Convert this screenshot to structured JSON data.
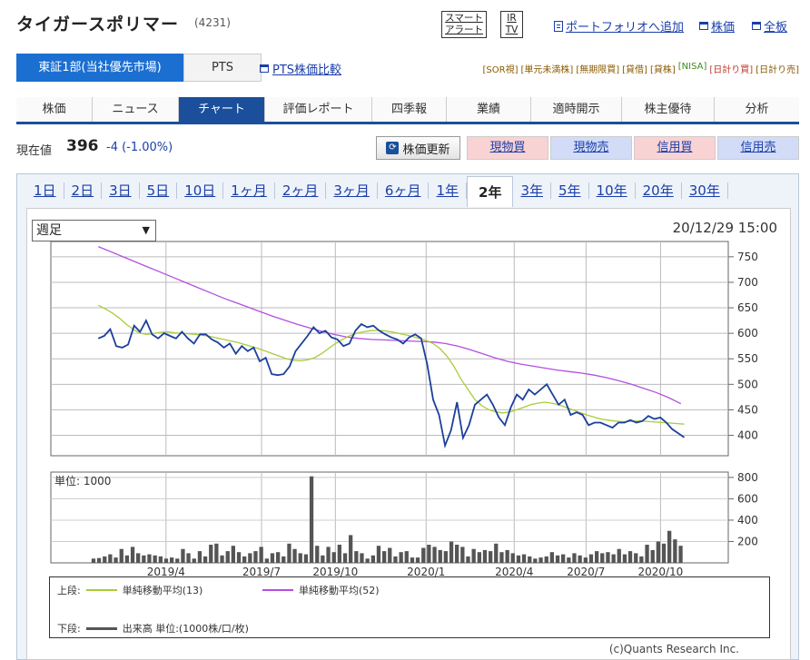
{
  "header": {
    "company": "タイガースポリマー",
    "code": "(4231)",
    "badge_alert_1": "スマート",
    "badge_alert_2": "アラート",
    "badge_ir_1": "IR",
    "badge_ir_2": "TV",
    "link_portfolio": "ポートフォリオへ追加",
    "link_price": "株価",
    "link_board": "全板"
  },
  "market": {
    "active_tab": "東証1部(当社優先市場)",
    "pts_tab": "PTS",
    "pts_compare": "PTS株価比較",
    "tags": [
      "[SOR視]",
      "[単元未満株]",
      "[無期限買]",
      "[貸借]",
      "[貸株]",
      "[NISA]",
      "[日計り買]",
      "[日計り売]"
    ]
  },
  "nav": {
    "items": [
      "株価",
      "ニュース",
      "チャート",
      "評価レポート",
      "四季報",
      "業績",
      "適時開示",
      "株主優待",
      "分析"
    ],
    "active_index": 2
  },
  "quote": {
    "label": "現在値",
    "price": "396",
    "change": "-4 (-1.00%)",
    "refresh": "株価更新",
    "buy_spot": "現物買",
    "sell_spot": "現物売",
    "buy_margin": "信用買",
    "sell_margin": "信用売"
  },
  "periods": {
    "items": [
      "1日",
      "2日",
      "3日",
      "5日",
      "10日",
      "1ヶ月",
      "2ヶ月",
      "3ヶ月",
      "6ヶ月",
      "1年",
      "2年",
      "3年",
      "5年",
      "10年",
      "20年",
      "30年"
    ],
    "active_index": 10
  },
  "chart_controls": {
    "select_value": "週足",
    "timestamp": "20/12/29 15:00",
    "volume_unit_label": "単位: 1000",
    "copyright": "(c)Quants Research Inc."
  },
  "legend": {
    "upper_label": "上段:",
    "ma13": "単純移動平均(13)",
    "ma52": "単純移動平均(52)",
    "lower_label": "下段:",
    "volume": "出来高 単位:(1000株/口/枚)"
  },
  "colors": {
    "price": "#1b3f9c",
    "ma13": "#a8cc3a",
    "ma52": "#b44fe0",
    "volume": "#555555",
    "tag_orange": "#8a5a00",
    "tag_green": "#3f8a1f",
    "tag_red": "#c0392b",
    "buy_bg": "#f9d3d3",
    "sell_bg": "#d3dcf7"
  },
  "chart_data": [
    {
      "type": "line",
      "yticks": [
        400,
        450,
        500,
        550,
        600,
        650,
        700,
        750
      ],
      "ylim": [
        360,
        780
      ],
      "xticks": [
        "2019/4",
        "2019/7",
        "2019/10",
        "2020/1",
        "2020/4",
        "2020/7",
        "2020/10"
      ],
      "series": [
        {
          "name": "株価",
          "values": [
            590,
            595,
            608,
            575,
            572,
            578,
            615,
            603,
            625,
            598,
            590,
            600,
            595,
            590,
            603,
            590,
            580,
            598,
            598,
            588,
            582,
            572,
            580,
            560,
            575,
            565,
            572,
            545,
            552,
            520,
            518,
            520,
            535,
            565,
            580,
            595,
            612,
            600,
            605,
            592,
            588,
            575,
            580,
            605,
            618,
            612,
            615,
            605,
            598,
            592,
            588,
            580,
            592,
            598,
            590,
            540,
            470,
            440,
            380,
            410,
            465,
            395,
            420,
            460,
            470,
            480,
            460,
            435,
            420,
            455,
            480,
            470,
            490,
            480,
            490,
            500,
            480,
            460,
            470,
            440,
            445,
            440,
            420,
            425,
            425,
            420,
            415,
            425,
            425,
            430,
            425,
            428,
            438,
            432,
            435,
            425,
            412,
            404,
            396
          ]
        },
        {
          "name": "単純移動平均(13)",
          "values": [
            655,
            648,
            640,
            630,
            618,
            608,
            600,
            598,
            600,
            602,
            603,
            601,
            600,
            599,
            598,
            596,
            594,
            591,
            588,
            585,
            582,
            578,
            574,
            570,
            565,
            560,
            555,
            550,
            547,
            546,
            548,
            552,
            560,
            570,
            580,
            588,
            595,
            600,
            603,
            605,
            606,
            605,
            603,
            600,
            597,
            594,
            590,
            586,
            580,
            570,
            555,
            535,
            510,
            490,
            470,
            458,
            450,
            446,
            444,
            446,
            450,
            455,
            460,
            463,
            465,
            463,
            460,
            455,
            450,
            445,
            440,
            436,
            432,
            430,
            428,
            427,
            427,
            428,
            428,
            427,
            426,
            425,
            424,
            423,
            422
          ]
        },
        {
          "name": "単純移動平均(52)",
          "values": [
            770,
            760,
            750,
            740,
            730,
            720,
            710,
            700,
            690,
            680,
            670,
            661,
            652,
            643,
            634,
            626,
            618,
            611,
            604,
            598,
            593,
            590,
            588,
            587,
            586,
            585,
            584,
            583,
            580,
            575,
            568,
            560,
            552,
            545,
            540,
            536,
            532,
            528,
            525,
            522,
            518,
            513,
            507,
            500,
            492,
            484,
            474,
            462
          ]
        },
        {
          "name": "出来高",
          "values": [
            40,
            45,
            60,
            80,
            50,
            130,
            70,
            150,
            90,
            70,
            80,
            70,
            60,
            40,
            50,
            40,
            130,
            90,
            40,
            110,
            60,
            170,
            180,
            70,
            110,
            160,
            100,
            60,
            90,
            110,
            150,
            40,
            90,
            100,
            60,
            180,
            130,
            90,
            80,
            810,
            160,
            70,
            150,
            100,
            170,
            90,
            260,
            110,
            90,
            40,
            70,
            160,
            110,
            140,
            60,
            100,
            110,
            50,
            50,
            140,
            170,
            150,
            120,
            110,
            200,
            170,
            150,
            60,
            130,
            100,
            120,
            110,
            180,
            100,
            120,
            90,
            70,
            80,
            60,
            40,
            50,
            60,
            100,
            70,
            80,
            50,
            90,
            70,
            50,
            80,
            110,
            90,
            100,
            80,
            130,
            80,
            110,
            90,
            60,
            170,
            120,
            200,
            180,
            300,
            220,
            160
          ]
        }
      ],
      "y2ticks": [
        200,
        400,
        600,
        800
      ],
      "y2lim": [
        0,
        850
      ]
    }
  ]
}
